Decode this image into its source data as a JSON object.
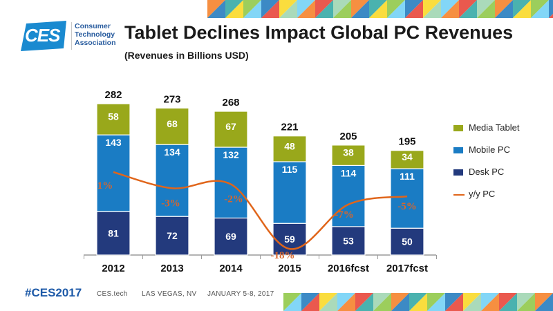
{
  "slide": {
    "logo_wordmark": "CES",
    "org_line1": "Consumer",
    "org_line2": "Technology",
    "org_line3": "Association",
    "title": "Tablet Declines Impact Global PC Revenues",
    "subtitle": "(Revenues in Billions USD)",
    "footer_hashtag": "#CES2017",
    "footer_site": "CES.tech",
    "footer_location": "LAS VEGAS, NV",
    "footer_dates": "JANUARY 5-8, 2017"
  },
  "colors": {
    "desk_pc": "#233a7d",
    "mobile_pc": "#1a7cc4",
    "media_tablet": "#99a81b",
    "yy_line": "#e0651a",
    "yy_text": "#d9662b",
    "logo_blue": "#1a8ad0"
  },
  "chart_data": {
    "type": "bar",
    "stacked": true,
    "title": "Tablet Declines Impact Global PC Revenues",
    "subtitle": "(Revenues in Billions USD)",
    "categories": [
      "2012",
      "2013",
      "2014",
      "2015",
      "2016fcst",
      "2017fcst"
    ],
    "series": [
      {
        "name": "Desk PC",
        "values": [
          81,
          72,
          69,
          59,
          53,
          50
        ],
        "color": "#233a7d"
      },
      {
        "name": "Mobile PC",
        "values": [
          143,
          134,
          132,
          115,
          114,
          111
        ],
        "color": "#1a7cc4"
      },
      {
        "name": "Media Tablet",
        "values": [
          58,
          68,
          67,
          48,
          38,
          34
        ],
        "color": "#99a81b"
      }
    ],
    "totals": [
      282,
      273,
      268,
      221,
      205,
      195
    ],
    "line_series": {
      "name": "y/y PC",
      "values": [
        1,
        -3,
        -2,
        -18,
        -7,
        -5
      ],
      "labels": [
        "1%",
        "-3%",
        "-2%",
        "-18%",
        "-7%",
        "-5%"
      ],
      "color": "#e0651a"
    },
    "ylim": [
      0,
      300
    ],
    "xlabel": "",
    "ylabel": "",
    "legend": "right",
    "grid": false
  }
}
